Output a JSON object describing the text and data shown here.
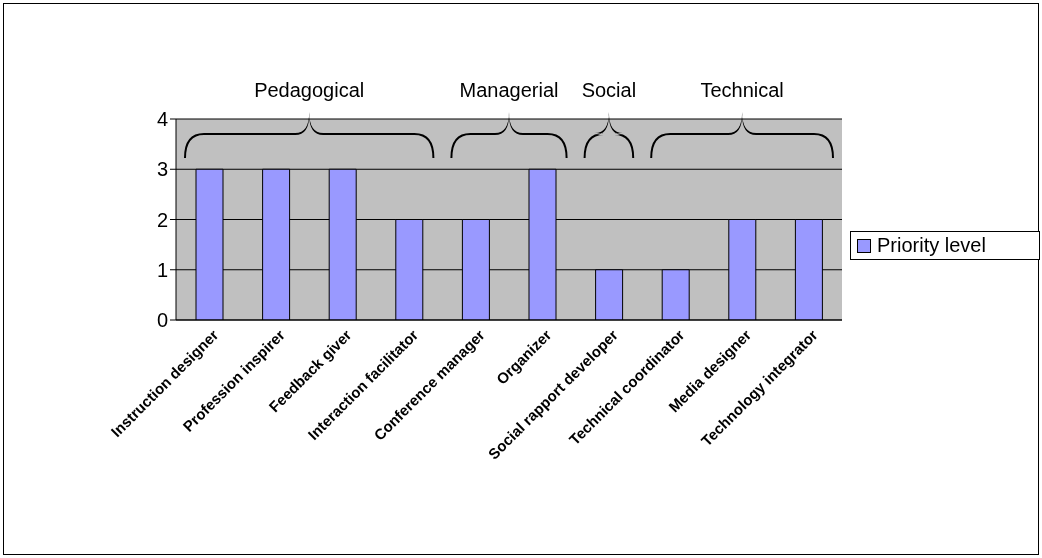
{
  "chart_data": {
    "type": "bar",
    "categories": [
      "Instruction designer",
      "Profession inspirer",
      "Feedback giver",
      "Interaction facilitator",
      "Conference manager",
      "Organizer",
      "Social rapport developer",
      "Technical coordinator",
      "Media designer",
      "Technology integrator"
    ],
    "series": [
      {
        "name": "Priority level",
        "color": "#9999ff",
        "values": [
          3,
          3,
          3,
          2,
          2,
          3,
          1,
          1,
          2,
          2
        ]
      }
    ],
    "ylim": [
      0,
      4
    ],
    "yticks": [
      0,
      1,
      2,
      3,
      4
    ],
    "grid": "y",
    "legend": "right",
    "annotations": [
      "Pedagogical",
      "Managerial",
      "Social",
      "Technical"
    ]
  }
}
